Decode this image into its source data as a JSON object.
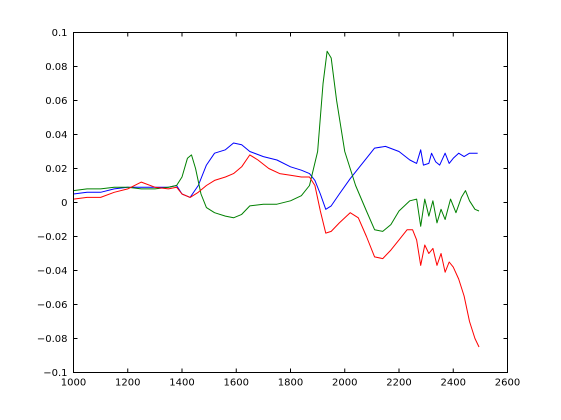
{
  "chart_data": {
    "type": "line",
    "title": "",
    "xlabel": "",
    "ylabel": "",
    "xlim": [
      1000,
      2600
    ],
    "ylim": [
      -0.1,
      0.1
    ],
    "grid": false,
    "legend": "none",
    "x_ticks": [
      1000,
      1200,
      1400,
      1600,
      1800,
      2000,
      2200,
      2400,
      2600
    ],
    "y_ticks": [
      -0.1,
      -0.08,
      -0.06,
      -0.04,
      -0.02,
      0,
      0.02,
      0.04,
      0.06,
      0.08,
      0.1
    ],
    "x_tick_labels": [
      "1000",
      "1200",
      "1400",
      "1600",
      "1800",
      "2000",
      "2200",
      "2400",
      "2600"
    ],
    "y_tick_labels": [
      "−0.1",
      "−0.08",
      "−0.06",
      "−0.04",
      "−0.02",
      "0",
      "0.02",
      "0.04",
      "0.06",
      "0.08",
      "0.1"
    ],
    "series": [
      {
        "color": "#0000ff",
        "points": [
          [
            1000,
            0.005
          ],
          [
            1050,
            0.006
          ],
          [
            1100,
            0.006
          ],
          [
            1150,
            0.008
          ],
          [
            1200,
            0.009
          ],
          [
            1250,
            0.009
          ],
          [
            1300,
            0.009
          ],
          [
            1350,
            0.009
          ],
          [
            1380,
            0.01
          ],
          [
            1400,
            0.005
          ],
          [
            1430,
            0.003
          ],
          [
            1460,
            0.01
          ],
          [
            1490,
            0.022
          ],
          [
            1520,
            0.029
          ],
          [
            1560,
            0.031
          ],
          [
            1590,
            0.035
          ],
          [
            1620,
            0.034
          ],
          [
            1650,
            0.03
          ],
          [
            1700,
            0.027
          ],
          [
            1750,
            0.025
          ],
          [
            1800,
            0.021
          ],
          [
            1840,
            0.019
          ],
          [
            1870,
            0.017
          ],
          [
            1890,
            0.013
          ],
          [
            1910,
            0.005
          ],
          [
            1930,
            -0.004
          ],
          [
            1950,
            -0.002
          ],
          [
            1980,
            0.005
          ],
          [
            2020,
            0.014
          ],
          [
            2070,
            0.024
          ],
          [
            2110,
            0.032
          ],
          [
            2150,
            0.033
          ],
          [
            2200,
            0.03
          ],
          [
            2240,
            0.025
          ],
          [
            2265,
            0.023
          ],
          [
            2280,
            0.031
          ],
          [
            2290,
            0.022
          ],
          [
            2310,
            0.023
          ],
          [
            2320,
            0.029
          ],
          [
            2335,
            0.024
          ],
          [
            2350,
            0.022
          ],
          [
            2370,
            0.029
          ],
          [
            2385,
            0.023
          ],
          [
            2400,
            0.026
          ],
          [
            2420,
            0.029
          ],
          [
            2440,
            0.027
          ],
          [
            2460,
            0.029
          ],
          [
            2490,
            0.029
          ]
        ]
      },
      {
        "color": "#008000",
        "points": [
          [
            1000,
            0.007
          ],
          [
            1050,
            0.008
          ],
          [
            1100,
            0.008
          ],
          [
            1150,
            0.009
          ],
          [
            1200,
            0.009
          ],
          [
            1250,
            0.008
          ],
          [
            1300,
            0.008
          ],
          [
            1350,
            0.009
          ],
          [
            1380,
            0.01
          ],
          [
            1400,
            0.015
          ],
          [
            1420,
            0.026
          ],
          [
            1435,
            0.028
          ],
          [
            1450,
            0.02
          ],
          [
            1470,
            0.005
          ],
          [
            1490,
            -0.003
          ],
          [
            1520,
            -0.006
          ],
          [
            1560,
            -0.008
          ],
          [
            1590,
            -0.009
          ],
          [
            1620,
            -0.007
          ],
          [
            1650,
            -0.002
          ],
          [
            1700,
            -0.001
          ],
          [
            1750,
            -0.001
          ],
          [
            1800,
            0.001
          ],
          [
            1840,
            0.004
          ],
          [
            1870,
            0.01
          ],
          [
            1900,
            0.03
          ],
          [
            1920,
            0.07
          ],
          [
            1935,
            0.089
          ],
          [
            1950,
            0.085
          ],
          [
            1970,
            0.06
          ],
          [
            2000,
            0.03
          ],
          [
            2040,
            0.01
          ],
          [
            2080,
            -0.005
          ],
          [
            2110,
            -0.016
          ],
          [
            2140,
            -0.017
          ],
          [
            2170,
            -0.013
          ],
          [
            2200,
            -0.005
          ],
          [
            2240,
            0.001
          ],
          [
            2265,
            0.002
          ],
          [
            2280,
            -0.014
          ],
          [
            2295,
            0.002
          ],
          [
            2310,
            -0.008
          ],
          [
            2325,
            0.001
          ],
          [
            2340,
            -0.012
          ],
          [
            2355,
            -0.004
          ],
          [
            2370,
            -0.01
          ],
          [
            2390,
            0.002
          ],
          [
            2410,
            -0.006
          ],
          [
            2430,
            0.003
          ],
          [
            2445,
            0.007
          ],
          [
            2460,
            0.001
          ],
          [
            2480,
            -0.004
          ],
          [
            2495,
            -0.005
          ]
        ]
      },
      {
        "color": "#ff0000",
        "points": [
          [
            1000,
            0.002
          ],
          [
            1050,
            0.003
          ],
          [
            1100,
            0.003
          ],
          [
            1150,
            0.006
          ],
          [
            1200,
            0.008
          ],
          [
            1250,
            0.012
          ],
          [
            1300,
            0.009
          ],
          [
            1350,
            0.008
          ],
          [
            1380,
            0.009
          ],
          [
            1400,
            0.005
          ],
          [
            1430,
            0.003
          ],
          [
            1460,
            0.006
          ],
          [
            1490,
            0.01
          ],
          [
            1520,
            0.013
          ],
          [
            1560,
            0.015
          ],
          [
            1590,
            0.017
          ],
          [
            1620,
            0.021
          ],
          [
            1650,
            0.028
          ],
          [
            1680,
            0.025
          ],
          [
            1720,
            0.02
          ],
          [
            1760,
            0.017
          ],
          [
            1800,
            0.016
          ],
          [
            1840,
            0.015
          ],
          [
            1870,
            0.015
          ],
          [
            1890,
            0.01
          ],
          [
            1910,
            -0.005
          ],
          [
            1930,
            -0.018
          ],
          [
            1950,
            -0.017
          ],
          [
            1980,
            -0.012
          ],
          [
            2020,
            -0.006
          ],
          [
            2050,
            -0.009
          ],
          [
            2080,
            -0.02
          ],
          [
            2110,
            -0.032
          ],
          [
            2140,
            -0.033
          ],
          [
            2170,
            -0.028
          ],
          [
            2200,
            -0.022
          ],
          [
            2230,
            -0.016
          ],
          [
            2250,
            -0.016
          ],
          [
            2265,
            -0.022
          ],
          [
            2280,
            -0.037
          ],
          [
            2295,
            -0.025
          ],
          [
            2310,
            -0.03
          ],
          [
            2325,
            -0.027
          ],
          [
            2340,
            -0.037
          ],
          [
            2355,
            -0.03
          ],
          [
            2370,
            -0.041
          ],
          [
            2385,
            -0.035
          ],
          [
            2400,
            -0.038
          ],
          [
            2420,
            -0.045
          ],
          [
            2440,
            -0.055
          ],
          [
            2460,
            -0.07
          ],
          [
            2480,
            -0.08
          ],
          [
            2495,
            -0.085
          ]
        ]
      }
    ]
  }
}
